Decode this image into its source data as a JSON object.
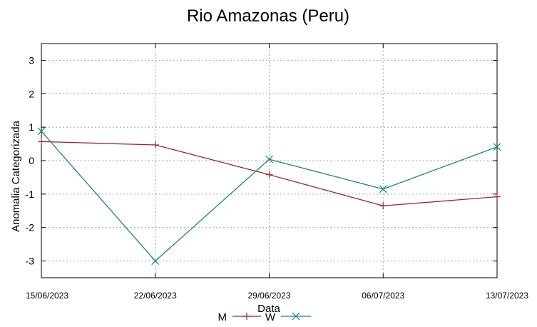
{
  "chart_data": {
    "type": "line",
    "title": "Rio Amazonas (Peru)",
    "xlabel": "Data",
    "ylabel": "Anomalia Categorizada",
    "x": [
      "15/06/2023",
      "22/06/2023",
      "29/06/2023",
      "06/07/2023",
      "13/07/2023"
    ],
    "ylim": [
      -3.5,
      3.5
    ],
    "yticks": [
      3,
      2,
      1,
      0,
      -1,
      -2,
      -3
    ],
    "grid": true,
    "legend": "bottom-center",
    "series": [
      {
        "name": "M",
        "color": "#a0252d",
        "marker": "plus",
        "values": [
          0.57,
          0.47,
          -0.42,
          -1.35,
          -1.08
        ]
      },
      {
        "name": "W",
        "color": "#1a8585",
        "marker": "cross",
        "values": [
          0.88,
          -3.0,
          0.04,
          -0.85,
          0.41
        ]
      }
    ]
  }
}
